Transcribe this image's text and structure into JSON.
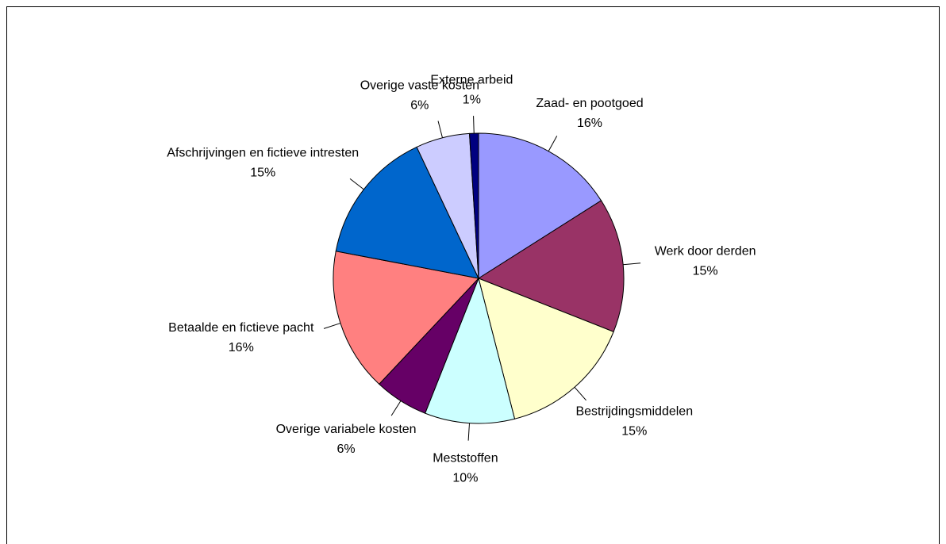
{
  "chart_data": {
    "type": "pie",
    "categories": [
      "Zaad- en pootgoed",
      "Werk door derden",
      "Bestrijdingsmiddelen",
      "Meststoffen",
      "Overige variabele kosten",
      "Betaalde en fictieve pacht",
      "Afschrijvingen en fictieve intresten",
      "Overige vaste kosten",
      "Externe arbeid"
    ],
    "values": [
      16,
      15,
      15,
      10,
      6,
      16,
      15,
      6,
      1
    ],
    "value_labels": [
      "16%",
      "15%",
      "15%",
      "10%",
      "6%",
      "16%",
      "15%",
      "6%",
      "1%"
    ],
    "colors": [
      "#9999ff",
      "#993366",
      "#ffffcc",
      "#ccffff",
      "#660066",
      "#ff8080",
      "#0066cc",
      "#ccccff",
      "#000080"
    ]
  }
}
